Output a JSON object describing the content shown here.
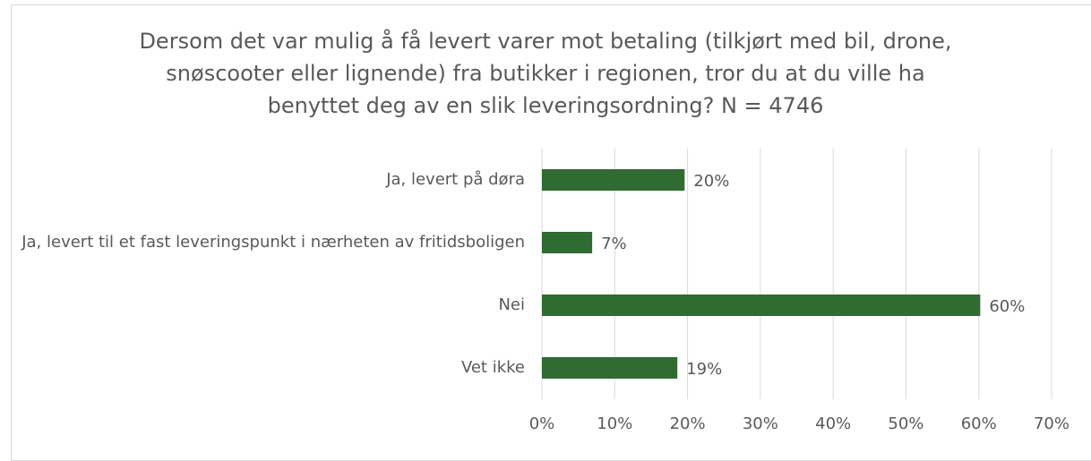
{
  "chart_data": {
    "type": "bar",
    "orientation": "horizontal",
    "title": "Dersom det var mulig å få levert varer mot betaling (tilkjørt med bil, drone, snøscooter eller lignende) fra butikker i regionen, tror du at du ville ha benyttet deg av en slik leveringsordning? N = 4746",
    "categories": [
      "Ja, levert på døra",
      "Ja, levert til et fast leveringspunkt i nærheten av fritidsboligen",
      "Nei",
      "Vet ikke"
    ],
    "values": [
      19.6,
      6.9,
      60.2,
      18.6
    ],
    "value_labels": [
      "20%",
      "7%",
      "60%",
      "19%"
    ],
    "color": "#306b32",
    "xlim": [
      0,
      70
    ],
    "xticks": [
      {
        "value": 0,
        "label": "0%"
      },
      {
        "value": 10,
        "label": "10%"
      },
      {
        "value": 20,
        "label": "20%"
      },
      {
        "value": 30,
        "label": "30%"
      },
      {
        "value": 40,
        "label": "40%"
      },
      {
        "value": 50,
        "label": "50%"
      },
      {
        "value": 60,
        "label": "60%"
      },
      {
        "value": 70,
        "label": "70%"
      }
    ],
    "grid": true
  }
}
